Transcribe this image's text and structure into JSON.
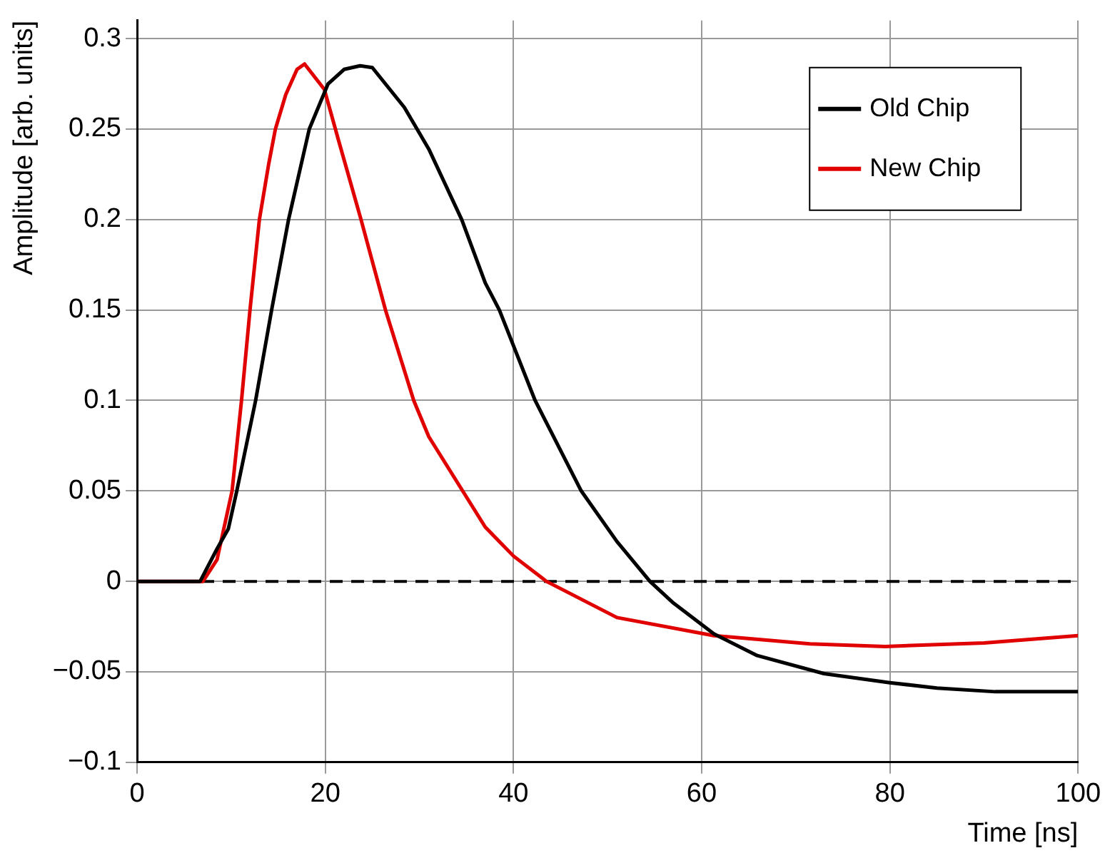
{
  "chart_data": {
    "type": "line",
    "xlabel": "Time [ns]",
    "ylabel": "Amplitude [arb. units]",
    "xlim": [
      0,
      100
    ],
    "xticks": [
      0,
      20,
      40,
      60,
      80,
      100
    ],
    "ylim": [
      -0.1,
      0.31
    ],
    "yticks": [
      {
        "value": -0.1,
        "label": "−0.1"
      },
      {
        "value": -0.05,
        "label": "−0.05"
      },
      0,
      0.05,
      0.1,
      0.15,
      0.2,
      0.25,
      0.3
    ],
    "grid": true,
    "legend": "top right",
    "marker": "none",
    "line_style": "solid",
    "ref_lines": [
      {
        "axis": "y",
        "value": 0,
        "color": "#000000",
        "line_style": "dashed"
      }
    ],
    "series": [
      {
        "name": "Old Chip",
        "color": "#000000",
        "x": [
          0,
          6.7,
          8.5,
          9.7,
          10.6,
          12.6,
          14.3,
          16.1,
          18.3,
          20.3,
          22,
          23.7,
          25,
          28.4,
          31,
          34.5,
          37,
          38.5,
          42.3,
          47.2,
          51,
          54.5,
          57,
          61.3,
          65.9,
          73,
          80,
          85,
          91.2,
          100
        ],
        "values": [
          0,
          0,
          0.018,
          0.029,
          0.05,
          0.1,
          0.15,
          0.2,
          0.25,
          0.275,
          0.283,
          0.285,
          0.284,
          0.262,
          0.239,
          0.2,
          0.165,
          0.15,
          0.1,
          0.05,
          0.022,
          0,
          -0.012,
          -0.029,
          -0.041,
          -0.051,
          -0.056,
          -0.059,
          -0.061,
          -0.061
        ]
      },
      {
        "name": "New Chip",
        "color": "#e00000",
        "x": [
          0,
          7,
          8.5,
          10.1,
          11.1,
          12,
          13,
          14,
          14.7,
          15.8,
          17,
          17.8,
          19.9,
          21.4,
          23.8,
          26.4,
          29.4,
          31,
          37,
          40,
          43.5,
          51,
          61.3,
          71.5,
          79.5,
          90,
          100
        ],
        "values": [
          0,
          0,
          0.012,
          0.05,
          0.1,
          0.15,
          0.2,
          0.231,
          0.25,
          0.269,
          0.283,
          0.286,
          0.272,
          0.244,
          0.2,
          0.15,
          0.1,
          0.08,
          0.03,
          0.014,
          0,
          -0.02,
          -0.03,
          -0.0345,
          -0.036,
          -0.034,
          -0.03
        ]
      }
    ]
  }
}
